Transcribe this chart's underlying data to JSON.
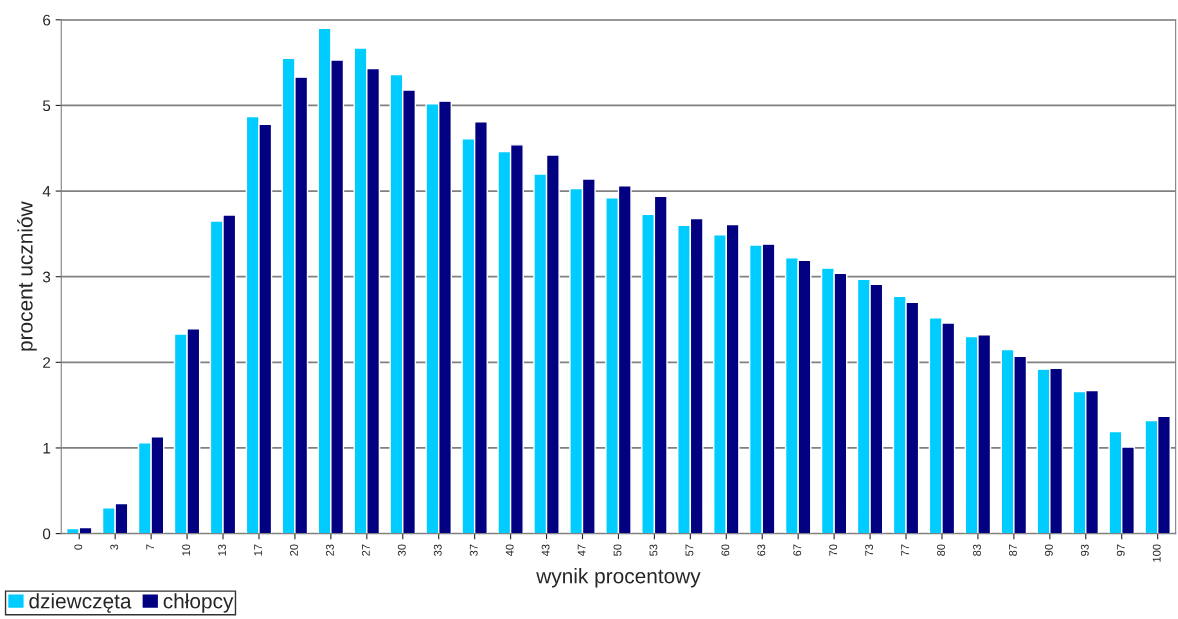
{
  "chart_data": {
    "type": "bar",
    "xlabel": "wynik procentowy",
    "ylabel": "procent uczniów",
    "categories": [
      "0",
      "3",
      "7",
      "10",
      "13",
      "17",
      "20",
      "23",
      "27",
      "30",
      "33",
      "37",
      "40",
      "43",
      "47",
      "50",
      "53",
      "57",
      "60",
      "63",
      "67",
      "70",
      "73",
      "77",
      "80",
      "83",
      "87",
      "90",
      "93",
      "97",
      "100"
    ],
    "series": [
      {
        "name": "dziewczęta",
        "color": "#00ccff",
        "values": [
          0.06,
          0.3,
          1.06,
          2.33,
          3.65,
          4.87,
          5.55,
          5.9,
          5.67,
          5.36,
          5.02,
          4.61,
          4.46,
          4.2,
          4.03,
          3.92,
          3.73,
          3.6,
          3.49,
          3.37,
          3.22,
          3.1,
          2.97,
          2.77,
          2.52,
          2.3,
          2.15,
          1.92,
          1.66,
          1.19,
          1.32
        ]
      },
      {
        "name": "chłopcy",
        "color": "#000080",
        "values": [
          0.07,
          0.35,
          1.13,
          2.39,
          3.72,
          4.78,
          5.33,
          5.53,
          5.43,
          5.18,
          5.05,
          4.81,
          4.54,
          4.42,
          4.14,
          4.06,
          3.94,
          3.68,
          3.61,
          3.38,
          3.19,
          3.04,
          2.91,
          2.7,
          2.46,
          2.32,
          2.07,
          1.93,
          1.67,
          1.01,
          1.37
        ]
      }
    ],
    "ylim": [
      0,
      6
    ],
    "yticks": [
      0,
      1,
      2,
      3,
      4,
      5,
      6
    ],
    "grid": "y",
    "legend": "bottom left"
  }
}
